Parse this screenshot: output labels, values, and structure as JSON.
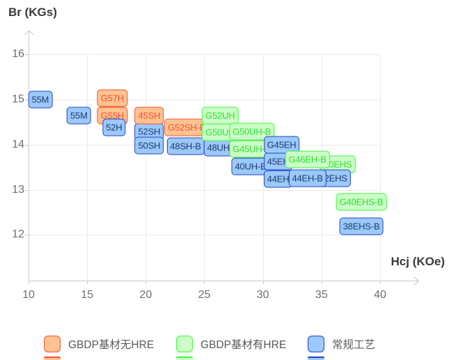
{
  "chart": {
    "y_title": "Br (KGs)",
    "x_title": "Hcj (KOe)"
  },
  "colors": {
    "grid": "#ebebeb",
    "axis": "#c9c9c9",
    "tick_label": "#6e6e6e",
    "axis_title": "#3a3a3a",
    "legend_label": "#595959"
  },
  "legend": [
    {
      "id": "gbdp_no_hre",
      "label": "GBDP基材无HRE",
      "fill": "#FDC392",
      "border": "#F6502E",
      "text": "#F6502E"
    },
    {
      "id": "gbdp_hre",
      "label": "GBDP基材有HRE",
      "fill": "#CCFEC8",
      "border": "#3DF53D",
      "text": "#2CDE2C"
    },
    {
      "id": "conventional",
      "label": "常规工艺",
      "fill": "#9BC9FB",
      "border": "#2143C9",
      "text": "#1E3A6E"
    }
  ],
  "chart_data": {
    "type": "scatter",
    "title": "",
    "xlabel": "Hcj (KOe)",
    "ylabel": "Br (KGs)",
    "xlim": [
      10,
      43.2
    ],
    "ylim": [
      11.1,
      16.5
    ],
    "xticks": [
      10,
      15,
      20,
      25,
      30,
      35,
      40
    ],
    "yticks": [
      12,
      13,
      14,
      15,
      16
    ],
    "grid": true,
    "legend_position": "bottom",
    "series_names": {
      "gbdp_no_hre": "GBDP基材无HRE",
      "gbdp_hre": "GBDP基材有HRE",
      "conventional": "常规工艺"
    },
    "points": [
      {
        "label": "55M",
        "series": "conventional",
        "hcj": 11.0,
        "br": 15.0
      },
      {
        "label": "55M",
        "series": "conventional",
        "hcj": 14.3,
        "br": 14.65
      },
      {
        "label": "G57H",
        "series": "gbdp_no_hre",
        "hcj": 17.15,
        "br": 15.03
      },
      {
        "label": "G55H",
        "series": "gbdp_no_hre",
        "hcj": 17.15,
        "br": 14.64
      },
      {
        "label": "52H",
        "series": "conventional",
        "hcj": 17.3,
        "br": 14.38
      },
      {
        "label": "52SH",
        "series": "conventional",
        "hcj": 20.3,
        "br": 14.29
      },
      {
        "label": "50SH",
        "series": "conventional",
        "hcj": 20.3,
        "br": 13.98
      },
      {
        "label": "45SH",
        "series": "gbdp_no_hre",
        "hcj": 20.3,
        "br": 14.65
      },
      {
        "label": "48SH-B",
        "series": "conventional",
        "hcj": 23.4,
        "br": 13.96
      },
      {
        "label": "G52SH-B",
        "series": "gbdp_no_hre",
        "hcj": 23.5,
        "br": 14.38
      },
      {
        "label": "48UH",
        "series": "conventional",
        "hcj": 26.2,
        "br": 13.93
      },
      {
        "label": "G52UH",
        "series": "gbdp_hre",
        "hcj": 26.35,
        "br": 14.65
      },
      {
        "label": "G50UH",
        "series": "gbdp_hre",
        "hcj": 26.35,
        "br": 14.27
      },
      {
        "label": "40UH-B",
        "series": "conventional",
        "hcj": 28.95,
        "br": 13.52
      },
      {
        "label": "G50UH-B",
        "series": "gbdp_hre",
        "hcj": 29.05,
        "br": 14.29
      },
      {
        "label": "G45UH-B",
        "series": "gbdp_hre",
        "hcj": 29.05,
        "br": 13.9
      },
      {
        "label": "44EH",
        "series": "conventional",
        "hcj": 31.3,
        "br": 13.24
      },
      {
        "label": "45EH",
        "series": "conventional",
        "hcj": 31.3,
        "br": 13.63
      },
      {
        "label": "G45EH",
        "series": "conventional",
        "hcj": 31.6,
        "br": 14.0
      },
      {
        "label": "40EHS",
        "series": "gbdp_hre",
        "hcj": 36.4,
        "br": 13.57
      },
      {
        "label": "42EHS",
        "series": "conventional",
        "hcj": 36.0,
        "br": 13.26
      },
      {
        "label": "44EH-B",
        "series": "conventional",
        "hcj": 33.8,
        "br": 13.26
      },
      {
        "label": "G46EH-B",
        "series": "gbdp_hre",
        "hcj": 33.8,
        "br": 13.67
      },
      {
        "label": "G40EHS-B",
        "series": "gbdp_hre",
        "hcj": 38.4,
        "br": 12.74
      },
      {
        "label": "38EHS-B",
        "series": "conventional",
        "hcj": 38.4,
        "br": 12.19
      }
    ]
  }
}
